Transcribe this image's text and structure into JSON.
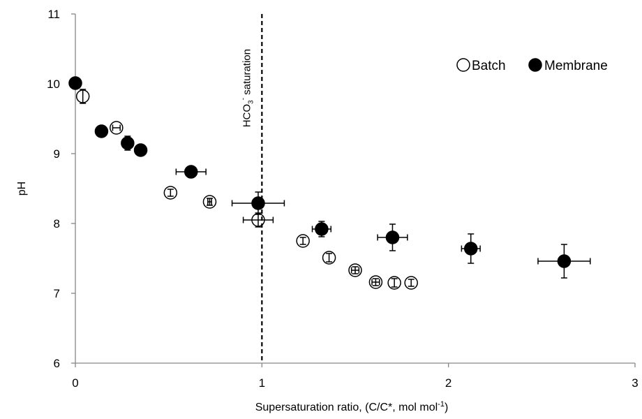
{
  "chart_data": {
    "type": "scatter",
    "title": "",
    "xlabel": {
      "main": "Supersaturation  ratio, (C/C*, mol mol",
      "sup": "-1",
      "tail": ")"
    },
    "ylabel": "pH",
    "xlim": [
      0,
      3
    ],
    "ylim": [
      6,
      11
    ],
    "x_ticks": [
      0,
      1,
      2,
      3
    ],
    "y_ticks": [
      6,
      7,
      8,
      9,
      10,
      11
    ],
    "x_tick_labels": [
      "0",
      "1",
      "2",
      "3"
    ],
    "y_tick_labels": [
      "6",
      "7",
      "8",
      "9",
      "10",
      "11"
    ],
    "grid": false,
    "legend_position": "top-right",
    "series": [
      {
        "name": "Batch",
        "marker": "open-circle",
        "color": "#000000",
        "points": [
          {
            "x": 0.04,
            "y": 9.82,
            "xerr": 0.0,
            "yerr": 0.1
          },
          {
            "x": 0.22,
            "y": 9.37,
            "xerr": 0.02,
            "yerr": 0.0
          },
          {
            "x": 0.51,
            "y": 8.44,
            "xerr": 0.0,
            "yerr": 0.05
          },
          {
            "x": 0.72,
            "y": 8.31,
            "xerr": 0.01,
            "yerr": 0.05
          },
          {
            "x": 0.98,
            "y": 8.05,
            "xerr": 0.08,
            "yerr": 0.1
          },
          {
            "x": 1.22,
            "y": 7.75,
            "xerr": 0.0,
            "yerr": 0.05
          },
          {
            "x": 1.36,
            "y": 7.51,
            "xerr": 0.0,
            "yerr": 0.06
          },
          {
            "x": 1.5,
            "y": 7.33,
            "xerr": 0.02,
            "yerr": 0.05
          },
          {
            "x": 1.61,
            "y": 7.16,
            "xerr": 0.02,
            "yerr": 0.05
          },
          {
            "x": 1.71,
            "y": 7.15,
            "xerr": 0.0,
            "yerr": 0.06
          },
          {
            "x": 1.8,
            "y": 7.15,
            "xerr": 0.0,
            "yerr": 0.05
          }
        ]
      },
      {
        "name": "Membrane",
        "marker": "filled-circle",
        "color": "#000000",
        "points": [
          {
            "x": 0.0,
            "y": 10.01,
            "xerr": 0.0,
            "yerr": 0.0
          },
          {
            "x": 0.14,
            "y": 9.32,
            "xerr": 0.0,
            "yerr": 0.0
          },
          {
            "x": 0.28,
            "y": 9.15,
            "xerr": 0.03,
            "yerr": 0.1
          },
          {
            "x": 0.35,
            "y": 9.05,
            "xerr": 0.0,
            "yerr": 0.05
          },
          {
            "x": 0.62,
            "y": 8.74,
            "xerr": 0.08,
            "yerr": 0.0
          },
          {
            "x": 0.98,
            "y": 8.29,
            "xerr": 0.14,
            "yerr": 0.16
          },
          {
            "x": 1.32,
            "y": 7.92,
            "xerr": 0.05,
            "yerr": 0.11
          },
          {
            "x": 1.7,
            "y": 7.8,
            "xerr": 0.08,
            "yerr": 0.19
          },
          {
            "x": 2.12,
            "y": 7.64,
            "xerr": 0.05,
            "yerr": 0.21
          },
          {
            "x": 2.62,
            "y": 7.46,
            "xerr": 0.14,
            "yerr": 0.24
          }
        ]
      }
    ],
    "reference_line": {
      "x": 1.0,
      "style": "dashed",
      "label": {
        "main": "HCO",
        "sub": "3",
        "sup": "-",
        "tail": " saturation"
      }
    },
    "legend": [
      "Batch",
      "Membrane"
    ]
  }
}
